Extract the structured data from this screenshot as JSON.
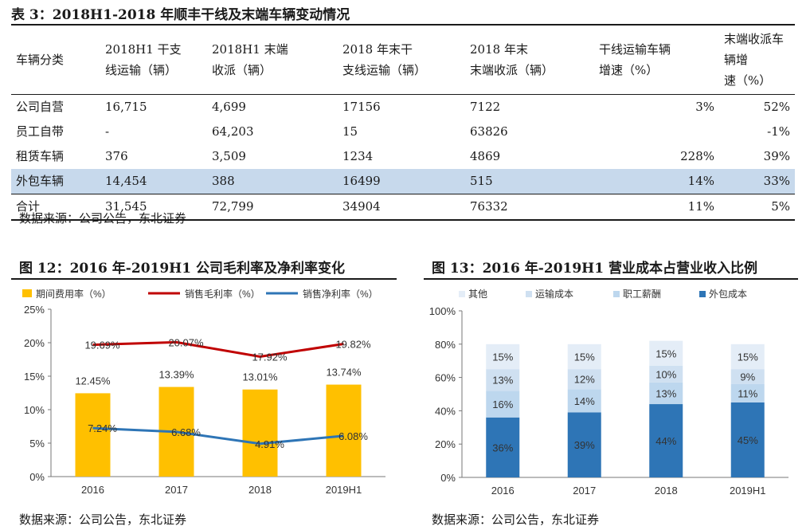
{
  "table": {
    "title": "表 3：2018H1-2018 年顺丰干线及末端车辆变动情况",
    "headers": [
      [
        "车辆分类"
      ],
      [
        "2018H1 干支",
        "线运输（辆）"
      ],
      [
        "2018H1 末端",
        "收派（辆）"
      ],
      [
        "2018 年末干",
        "支线运输（辆）"
      ],
      [
        "2018 年末",
        "末端收派（辆）"
      ],
      [
        "干线运输车辆",
        "增速（%）"
      ],
      [
        "末端收派车辆增",
        "速（%）"
      ]
    ],
    "rows": [
      [
        "公司自营",
        "16,715",
        "4,699",
        "17156",
        "7122",
        "3%",
        "52%"
      ],
      [
        "员工自带",
        "-",
        "64,203",
        "15",
        "63826",
        "",
        "-1%"
      ],
      [
        "租赁车辆",
        "376",
        "3,509",
        "1234",
        "4869",
        "228%",
        "39%"
      ],
      [
        "外包车辆",
        "14,454",
        "388",
        "16499",
        "515",
        "14%",
        "33%"
      ],
      [
        "合计",
        "31,545",
        "72,799",
        "34904",
        "76332",
        "11%",
        "5%"
      ]
    ],
    "highlight_color": "#c7d9ec",
    "source": "数据来源：公司公告，东北证券"
  },
  "chart_data": [
    {
      "figure_title": "图 12：2016 年-2019H1 公司毛利率及净利率变化",
      "type": "bar",
      "categories": [
        "2016",
        "2017",
        "2018",
        "2019H1"
      ],
      "ylim": [
        0,
        25
      ],
      "yticks": [
        "0%",
        "5%",
        "10%",
        "15%",
        "20%",
        "25%"
      ],
      "grid": false,
      "legend_position": "top",
      "series": [
        {
          "name": "期间费用率（%）",
          "kind": "bar",
          "color": "#ffc000",
          "values": [
            12.45,
            13.39,
            13.01,
            13.74
          ],
          "labels": [
            "12.45%",
            "13.39%",
            "13.01%",
            "13.74%"
          ]
        },
        {
          "name": "销售毛利率（%）",
          "kind": "line",
          "color": "#c00000",
          "values": [
            19.69,
            20.07,
            17.92,
            19.82
          ],
          "labels": [
            "19.69%",
            "20.07%",
            "17.92%",
            "19.82%"
          ]
        },
        {
          "name": "销售净利率（%）",
          "kind": "line",
          "color": "#2e75b6",
          "values": [
            7.24,
            6.68,
            4.91,
            6.08
          ],
          "labels": [
            "7.24%",
            "6.68%",
            "4.91%",
            "6.08%"
          ]
        }
      ],
      "source": "数据来源：公司公告，东北证券"
    },
    {
      "figure_title": "图 13：2016 年-2019H1 营业成本占营业收入比例",
      "type": "bar",
      "stacked": true,
      "categories": [
        "2016",
        "2017",
        "2018",
        "2019H1"
      ],
      "ylim": [
        0,
        100
      ],
      "yticks": [
        "0%",
        "20%",
        "40%",
        "60%",
        "80%",
        "100%"
      ],
      "grid": false,
      "legend_position": "top",
      "series": [
        {
          "name": "外包成本",
          "color": "#2e75b6",
          "values": [
            36,
            39,
            44,
            45
          ],
          "labels": [
            "36%",
            "39%",
            "44%",
            "45%"
          ]
        },
        {
          "name": "职工薪酬",
          "color": "#bdd7ee",
          "values": [
            16,
            14,
            13,
            11
          ],
          "labels": [
            "16%",
            "14%",
            "13%",
            "11%"
          ]
        },
        {
          "name": "运输成本",
          "color": "#cfe0f1",
          "values": [
            13,
            12,
            10,
            9
          ],
          "labels": [
            "13%",
            "12%",
            "10%",
            "9%"
          ]
        },
        {
          "name": "其他",
          "color": "#e4edf7",
          "values": [
            15,
            15,
            15,
            15
          ],
          "labels": [
            "15%",
            "15%",
            "15%",
            "15%"
          ]
        }
      ],
      "legend_order": [
        "其他",
        "运输成本",
        "职工薪酬",
        "外包成本"
      ],
      "source": "数据来源：公司公告，东北证券"
    }
  ]
}
